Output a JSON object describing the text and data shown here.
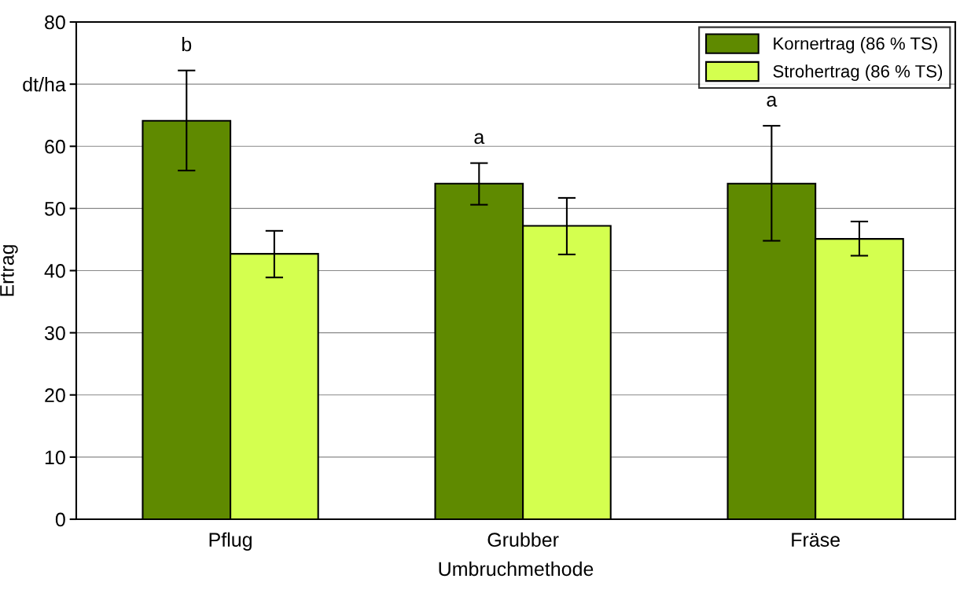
{
  "chart_data": {
    "type": "bar",
    "xlabel": "Umbruchmethode",
    "ylabel": "Ertrag",
    "categories": [
      "Pflug",
      "Grubber",
      "Fräse"
    ],
    "series": [
      {
        "name": "Kornertrag (86 % TS)",
        "color": "#5f8a00",
        "values": [
          64.1,
          54.0,
          54.0
        ],
        "errors": [
          [
            56.1,
            72.2
          ],
          [
            50.6,
            57.3
          ],
          [
            44.8,
            63.3
          ]
        ]
      },
      {
        "name": "Strohertrag (86 % TS)",
        "color": "#d4ff4f",
        "values": [
          42.7,
          47.2,
          45.1
        ],
        "errors": [
          [
            38.9,
            46.4
          ],
          [
            42.6,
            51.7
          ],
          [
            42.4,
            47.9
          ]
        ]
      }
    ],
    "ylim": [
      0,
      80
    ],
    "yticks": [
      0,
      10,
      20,
      30,
      40,
      50,
      60,
      {
        "value": 70,
        "label": "dt/ha"
      },
      80
    ],
    "grid": "y",
    "legend": "top right",
    "annotations": [
      "b",
      "a",
      "a"
    ]
  }
}
